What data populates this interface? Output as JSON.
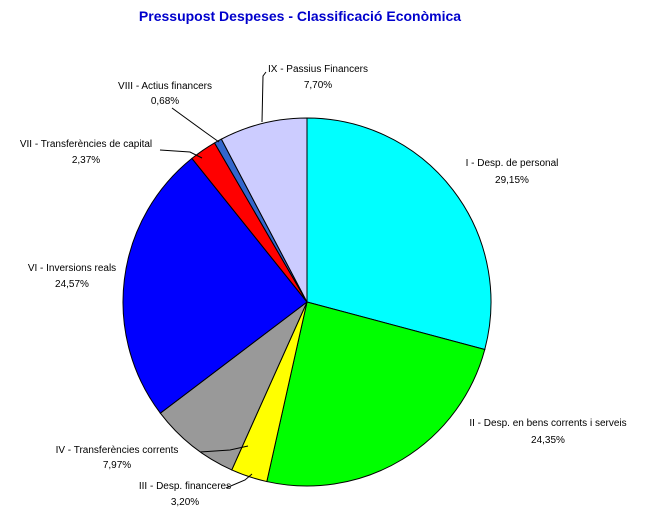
{
  "chart_data": {
    "type": "pie",
    "title": "Pressupost Despeses - Classificació Econòmica",
    "start_angle_deg": 0,
    "direction": "clockwise",
    "slices": [
      {
        "name": "I - Desp. de personal",
        "label_value": "29,15%",
        "value": 29.15,
        "color": "#00ffff"
      },
      {
        "name": "II - Desp. en bens corrents i serveis",
        "label_value": "24,35%",
        "value": 24.35,
        "color": "#00ff00"
      },
      {
        "name": "III - Desp. financeres",
        "label_value": "3,20%",
        "value": 3.2,
        "color": "#ffff00"
      },
      {
        "name": "IV - Transferències corrents",
        "label_value": "7,97%",
        "value": 7.97,
        "color": "#999999"
      },
      {
        "name": "VI - Inversions reals",
        "label_value": "24,57%",
        "value": 24.57,
        "color": "#0000ff"
      },
      {
        "name": "VII - Transferències de capital",
        "label_value": "2,37%",
        "value": 2.37,
        "color": "#ff0000"
      },
      {
        "name": "VIII - Actius financers",
        "label_value": "0,68%",
        "value": 0.68,
        "color": "#3366cc"
      },
      {
        "name": "IX - Passius Financers",
        "label_value": "7,70%",
        "value": 7.7,
        "color": "#ccccff"
      }
    ]
  }
}
